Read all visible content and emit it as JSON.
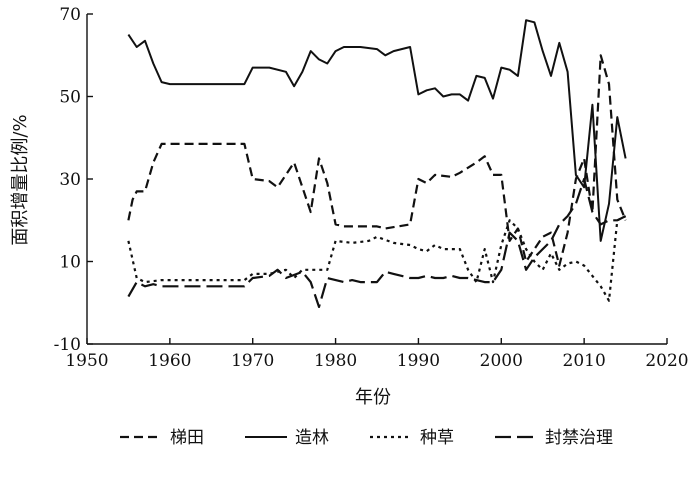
{
  "chart_data": {
    "type": "line",
    "title": "",
    "xlabel": "年份",
    "ylabel": "面积增量比例/%",
    "xlim": [
      1950,
      2020
    ],
    "ylim": [
      -10,
      70
    ],
    "xticks": [
      1950,
      1960,
      1970,
      1980,
      1990,
      2000,
      2010,
      2020
    ],
    "yticks": [
      -10,
      10,
      30,
      50,
      70
    ],
    "grid": false,
    "legend_position": "bottom",
    "series": [
      {
        "name": "梯田",
        "style": "dashed",
        "points": [
          [
            1955,
            20
          ],
          [
            1955.5,
            25
          ],
          [
            1956,
            27
          ],
          [
            1957,
            27
          ],
          [
            1958,
            34
          ],
          [
            1959,
            38.5
          ],
          [
            1969,
            38.5
          ],
          [
            1970,
            30
          ],
          [
            1972,
            29.5
          ],
          [
            1973,
            28
          ],
          [
            1975,
            34
          ],
          [
            1977,
            22
          ],
          [
            1978,
            35
          ],
          [
            1979,
            29
          ],
          [
            1980,
            19
          ],
          [
            1981,
            18.5
          ],
          [
            1985,
            18.5
          ],
          [
            1986,
            18
          ],
          [
            1989,
            19
          ],
          [
            1990,
            30
          ],
          [
            1991,
            29
          ],
          [
            1992,
            31
          ],
          [
            1994,
            30.5
          ],
          [
            1995,
            31.5
          ],
          [
            1997,
            34
          ],
          [
            1998,
            35.5
          ],
          [
            1999,
            31
          ],
          [
            2000,
            31
          ],
          [
            2001,
            15
          ],
          [
            2002,
            18
          ],
          [
            2003,
            10
          ],
          [
            2004,
            13
          ],
          [
            2005,
            16
          ],
          [
            2006,
            17
          ],
          [
            2007,
            9
          ],
          [
            2008,
            17
          ],
          [
            2009,
            30
          ],
          [
            2010,
            35
          ],
          [
            2011,
            22
          ],
          [
            2012,
            60
          ],
          [
            2013,
            53
          ],
          [
            2014,
            25
          ],
          [
            2015,
            20
          ]
        ]
      },
      {
        "name": "造林",
        "style": "solid",
        "points": [
          [
            1955,
            65
          ],
          [
            1956,
            62
          ],
          [
            1957,
            63.5
          ],
          [
            1958,
            58
          ],
          [
            1959,
            53.5
          ],
          [
            1960,
            53
          ],
          [
            1969,
            53
          ],
          [
            1970,
            57
          ],
          [
            1972,
            57
          ],
          [
            1974,
            56
          ],
          [
            1975,
            52.5
          ],
          [
            1976,
            56
          ],
          [
            1977,
            61
          ],
          [
            1978,
            59
          ],
          [
            1979,
            58
          ],
          [
            1980,
            61
          ],
          [
            1981,
            62
          ],
          [
            1983,
            62
          ],
          [
            1985,
            61.5
          ],
          [
            1986,
            60
          ],
          [
            1987,
            61
          ],
          [
            1989,
            62
          ],
          [
            1990,
            50.5
          ],
          [
            1991,
            51.5
          ],
          [
            1992,
            52
          ],
          [
            1993,
            50
          ],
          [
            1994,
            50.5
          ],
          [
            1995,
            50.5
          ],
          [
            1996,
            49
          ],
          [
            1997,
            55
          ],
          [
            1998,
            54.5
          ],
          [
            1999,
            49.5
          ],
          [
            2000,
            57
          ],
          [
            2001,
            56.5
          ],
          [
            2002,
            55
          ],
          [
            2003,
            68.5
          ],
          [
            2004,
            68
          ],
          [
            2005,
            61
          ],
          [
            2006,
            55
          ],
          [
            2007,
            63
          ],
          [
            2008,
            56
          ],
          [
            2009,
            31
          ],
          [
            2010,
            28
          ],
          [
            2011,
            48
          ],
          [
            2012,
            15
          ],
          [
            2013,
            24
          ],
          [
            2014,
            45
          ],
          [
            2015,
            35
          ]
        ]
      },
      {
        "name": "种草",
        "style": "dotted",
        "points": [
          [
            1955,
            15
          ],
          [
            1956,
            6
          ],
          [
            1957,
            5
          ],
          [
            1959,
            5.5
          ],
          [
            1969,
            5.5
          ],
          [
            1970,
            7
          ],
          [
            1972,
            7
          ],
          [
            1974,
            8
          ],
          [
            1975,
            6
          ],
          [
            1976,
            8
          ],
          [
            1978,
            8
          ],
          [
            1979,
            8
          ],
          [
            1980,
            15
          ],
          [
            1982,
            14.5
          ],
          [
            1984,
            15
          ],
          [
            1985,
            16
          ],
          [
            1987,
            14.5
          ],
          [
            1989,
            14
          ],
          [
            1990,
            13
          ],
          [
            1991,
            12.5
          ],
          [
            1992,
            14
          ],
          [
            1993,
            13
          ],
          [
            1994,
            13
          ],
          [
            1995,
            13
          ],
          [
            1996,
            8
          ],
          [
            1997,
            5
          ],
          [
            1998,
            13
          ],
          [
            1999,
            5
          ],
          [
            2000,
            14
          ],
          [
            2001,
            20
          ],
          [
            2002,
            18
          ],
          [
            2003,
            13
          ],
          [
            2004,
            10
          ],
          [
            2005,
            8
          ],
          [
            2006,
            12
          ],
          [
            2007,
            8
          ],
          [
            2008,
            9.5
          ],
          [
            2009,
            10
          ],
          [
            2010,
            9
          ],
          [
            2011,
            6.5
          ],
          [
            2012,
            4
          ],
          [
            2013,
            0.5
          ],
          [
            2014,
            20
          ],
          [
            2015,
            21
          ]
        ]
      },
      {
        "name": "封禁治理",
        "style": "longdash",
        "points": [
          [
            1955,
            1.5
          ],
          [
            1956,
            5
          ],
          [
            1957,
            4
          ],
          [
            1958,
            4.5
          ],
          [
            1959,
            4
          ],
          [
            1969,
            4
          ],
          [
            1970,
            6
          ],
          [
            1972,
            6.5
          ],
          [
            1973,
            8
          ],
          [
            1974,
            6
          ],
          [
            1976,
            7.5
          ],
          [
            1977,
            5
          ],
          [
            1978,
            -1
          ],
          [
            1979,
            6
          ],
          [
            1980,
            5.5
          ],
          [
            1981,
            5
          ],
          [
            1982,
            5.5
          ],
          [
            1983,
            5
          ],
          [
            1984,
            5
          ],
          [
            1985,
            5
          ],
          [
            1986,
            7.5
          ],
          [
            1987,
            7
          ],
          [
            1988,
            6.5
          ],
          [
            1989,
            6
          ],
          [
            1990,
            6
          ],
          [
            1991,
            6.5
          ],
          [
            1992,
            6
          ],
          [
            1993,
            6
          ],
          [
            1994,
            6.5
          ],
          [
            1995,
            6
          ],
          [
            1996,
            6
          ],
          [
            1997,
            5.5
          ],
          [
            1998,
            5
          ],
          [
            1999,
            5
          ],
          [
            2000,
            8
          ],
          [
            2001,
            17
          ],
          [
            2002,
            15
          ],
          [
            2003,
            8
          ],
          [
            2004,
            11
          ],
          [
            2005,
            13
          ],
          [
            2006,
            15
          ],
          [
            2007,
            19
          ],
          [
            2008,
            21
          ],
          [
            2009,
            24
          ],
          [
            2010,
            30
          ],
          [
            2011,
            22
          ],
          [
            2012,
            19
          ],
          [
            2013,
            20
          ],
          [
            2014,
            20
          ],
          [
            2015,
            21
          ]
        ]
      }
    ]
  }
}
